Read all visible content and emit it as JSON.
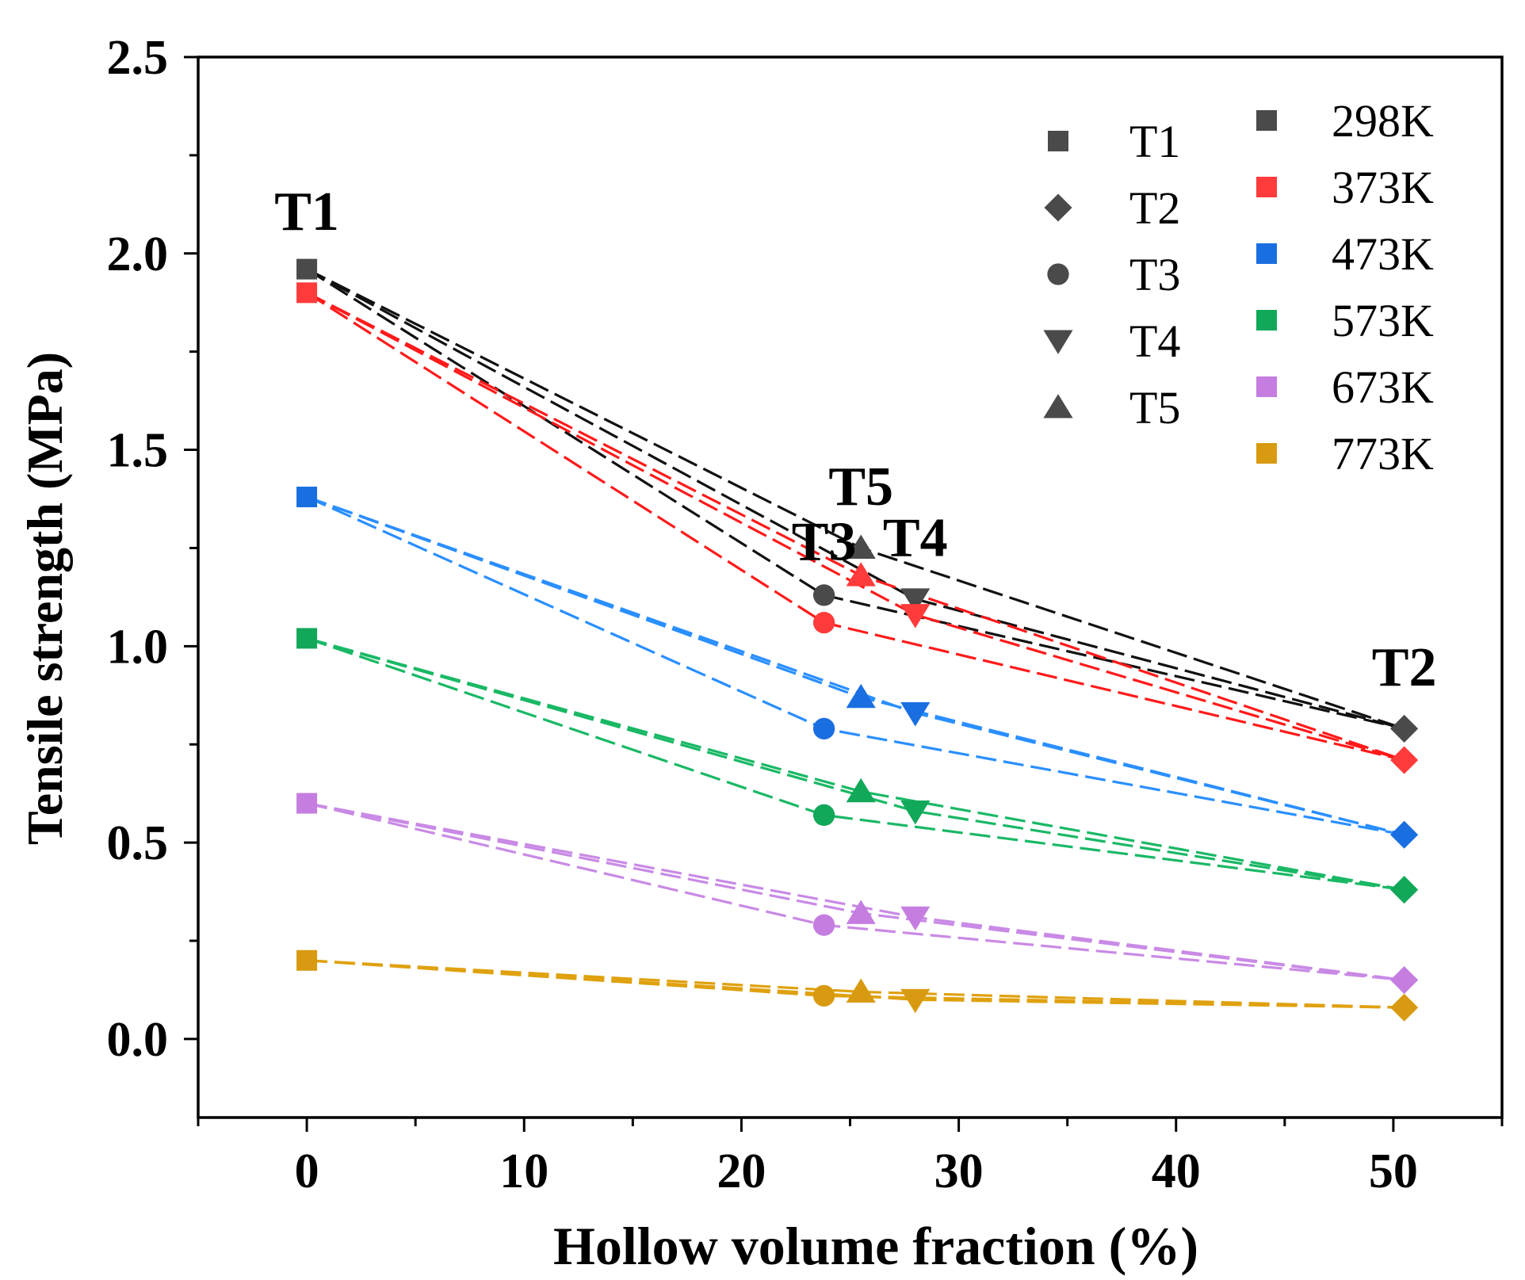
{
  "chart_data": {
    "type": "scatter",
    "title": "",
    "xlabel": "Hollow volume fraction (%)",
    "ylabel": "Tensile strength (MPa)",
    "xlim": [
      -5,
      55
    ],
    "ylim": [
      -0.2,
      2.5
    ],
    "xticks": [
      0,
      10,
      20,
      30,
      40,
      50
    ],
    "xtick_labels": [
      "0",
      "10",
      "20",
      "30",
      "40",
      "50"
    ],
    "yticks": [
      0.0,
      0.5,
      1.0,
      1.5,
      2.0,
      2.5
    ],
    "ytick_labels": [
      "0.0",
      "0.5",
      "1.0",
      "1.5",
      "2.0",
      "2.5"
    ],
    "grid": false,
    "samples": [
      {
        "name": "T1",
        "x": 0,
        "marker": "square"
      },
      {
        "name": "T2",
        "x": 50.5,
        "marker": "diamond"
      },
      {
        "name": "T3",
        "x": 23.8,
        "marker": "circle"
      },
      {
        "name": "T4",
        "x": 28.0,
        "marker": "triangle-down"
      },
      {
        "name": "T5",
        "x": 25.5,
        "marker": "triangle-up"
      }
    ],
    "series": [
      {
        "name": "298K",
        "color": "#4a4a4a",
        "line_color": "#111111",
        "values": {
          "T1": 1.96,
          "T2": 0.79,
          "T3": 1.13,
          "T4": 1.12,
          "T5": 1.25
        }
      },
      {
        "name": "373K",
        "color": "#ff3b3b",
        "line_color": "#ff1a1a",
        "values": {
          "T1": 1.9,
          "T2": 0.71,
          "T3": 1.06,
          "T4": 1.08,
          "T5": 1.18
        }
      },
      {
        "name": "473K",
        "color": "#1a6fe0",
        "line_color": "#2a8fff",
        "values": {
          "T1": 1.38,
          "T2": 0.52,
          "T3": 0.79,
          "T4": 0.83,
          "T5": 0.87
        }
      },
      {
        "name": "573K",
        "color": "#12a85a",
        "line_color": "#19b865",
        "values": {
          "T1": 1.02,
          "T2": 0.38,
          "T3": 0.57,
          "T4": 0.58,
          "T5": 0.63
        }
      },
      {
        "name": "673K",
        "color": "#c57ee0",
        "line_color": "#c98ae6",
        "values": {
          "T1": 0.6,
          "T2": 0.15,
          "T3": 0.29,
          "T4": 0.31,
          "T5": 0.32
        }
      },
      {
        "name": "773K",
        "color": "#d89a10",
        "line_color": "#e0a10f",
        "values": {
          "T1": 0.2,
          "T2": 0.08,
          "T3": 0.11,
          "T4": 0.1,
          "T5": 0.12
        }
      }
    ],
    "annotations": [
      {
        "text": "T1",
        "x": 0,
        "y": 2.06
      },
      {
        "text": "T2",
        "x": 50.5,
        "y": 0.9
      },
      {
        "text": "T3",
        "x": 23.8,
        "y": 1.22
      },
      {
        "text": "T4",
        "x": 28.0,
        "y": 1.23
      },
      {
        "text": "T5",
        "x": 25.5,
        "y": 1.36
      }
    ],
    "legend": {
      "placement": "top-right",
      "shape_entries": [
        "T1",
        "T2",
        "T3",
        "T4",
        "T5"
      ],
      "color_entries": [
        "298K",
        "373K",
        "473K",
        "573K",
        "673K",
        "773K"
      ]
    }
  }
}
